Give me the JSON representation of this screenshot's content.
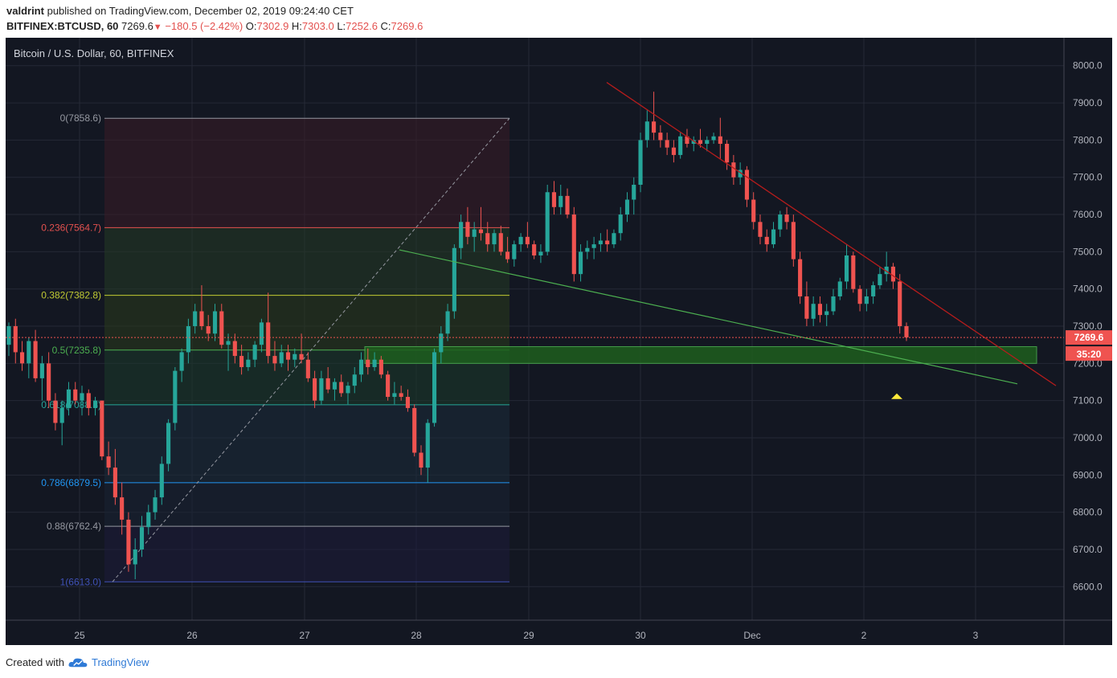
{
  "header": {
    "author": "valdrint",
    "published_text": "published on TradingView.com, December 02, 2019 09:24:40 CET",
    "symbol": "BITFINEX:BTCUSD, 60",
    "last": "7269.6",
    "change": "−180.5 (−2.42%)",
    "o_label": "O:",
    "o": "7302.9",
    "h_label": "H:",
    "h": "7303.0",
    "l_label": "L:",
    "l": "7252.6",
    "c_label": "C:",
    "c": "7269.6"
  },
  "footer": {
    "created_with": "Created with",
    "brand": "TradingView"
  },
  "colors": {
    "up": "#26a69a",
    "down": "#ef5350",
    "bg": "#131722",
    "grid": "#2a2e39"
  },
  "chart_data": {
    "type": "candlestick",
    "title": "Bitcoin / U.S. Dollar, 60, BITFINEX",
    "ylim": [
      6510,
      8075
    ],
    "y_ticks": [
      "8000.0",
      "7900.0",
      "7800.0",
      "7700.0",
      "7600.0",
      "7500.0",
      "7400.0",
      "7300.0",
      "7200.0",
      "7100.0",
      "7000.0",
      "6900.0",
      "6800.0",
      "6700.0",
      "6600.0"
    ],
    "x_ticks": [
      "25",
      "26",
      "27",
      "28",
      "29",
      "30",
      "Dec",
      "2",
      "3"
    ],
    "last_price_label": "7269.6",
    "countdown_label": "35:20",
    "fib_levels": [
      {
        "label": "0(7858.6)",
        "price": 7858.6,
        "color": "#9598a1"
      },
      {
        "label": "0.236(7564.7)",
        "price": 7564.7,
        "color": "#e3514f"
      },
      {
        "label": "0.382(7382.8)",
        "price": 7382.8,
        "color": "#c0ca33"
      },
      {
        "label": "0.5(7235.8)",
        "price": 7235.8,
        "color": "#4caf50"
      },
      {
        "label": "0.618(7088.8)",
        "price": 7088.8,
        "color": "#26a69a"
      },
      {
        "label": "0.786(6879.5)",
        "price": 6879.5,
        "color": "#2196f3"
      },
      {
        "label": "0.88(6762.4)",
        "price": 6762.4,
        "color": "#9598a1"
      },
      {
        "label": "1(6613.0)",
        "price": 6613.0,
        "color": "#3f51b5"
      }
    ],
    "support_zone": [
      7200,
      7245
    ],
    "candles": [
      [
        7250,
        7310,
        7220,
        7300
      ],
      [
        7300,
        7320,
        7200,
        7230
      ],
      [
        7230,
        7260,
        7180,
        7200
      ],
      [
        7200,
        7270,
        7160,
        7260
      ],
      [
        7260,
        7290,
        7150,
        7160
      ],
      [
        7160,
        7220,
        7100,
        7200
      ],
      [
        7200,
        7230,
        7080,
        7100
      ],
      [
        7100,
        7120,
        7020,
        7040
      ],
      [
        7040,
        7100,
        6980,
        7080
      ],
      [
        7080,
        7150,
        7060,
        7130
      ],
      [
        7130,
        7150,
        7090,
        7100
      ],
      [
        7100,
        7140,
        7060,
        7120
      ],
      [
        7120,
        7130,
        7060,
        7080
      ],
      [
        7080,
        7110,
        7060,
        7100
      ],
      [
        7100,
        7100,
        6940,
        6950
      ],
      [
        6950,
        6990,
        6900,
        6920
      ],
      [
        6920,
        6970,
        6820,
        6840
      ],
      [
        6840,
        6880,
        6740,
        6780
      ],
      [
        6780,
        6800,
        6640,
        6660
      ],
      [
        6660,
        6730,
        6620,
        6700
      ],
      [
        6700,
        6790,
        6680,
        6760
      ],
      [
        6760,
        6820,
        6740,
        6800
      ],
      [
        6800,
        6860,
        6780,
        6840
      ],
      [
        6840,
        6950,
        6820,
        6930
      ],
      [
        6930,
        7050,
        6910,
        7040
      ],
      [
        7040,
        7190,
        7020,
        7180
      ],
      [
        7180,
        7240,
        7150,
        7230
      ],
      [
        7230,
        7320,
        7200,
        7300
      ],
      [
        7300,
        7360,
        7280,
        7340
      ],
      [
        7340,
        7410,
        7290,
        7300
      ],
      [
        7300,
        7330,
        7260,
        7280
      ],
      [
        7280,
        7360,
        7260,
        7340
      ],
      [
        7340,
        7360,
        7240,
        7250
      ],
      [
        7250,
        7280,
        7180,
        7260
      ],
      [
        7260,
        7280,
        7200,
        7220
      ],
      [
        7220,
        7250,
        7170,
        7190
      ],
      [
        7190,
        7230,
        7180,
        7210
      ],
      [
        7210,
        7260,
        7190,
        7250
      ],
      [
        7250,
        7320,
        7230,
        7310
      ],
      [
        7310,
        7390,
        7200,
        7220
      ],
      [
        7220,
        7260,
        7180,
        7200
      ],
      [
        7200,
        7250,
        7190,
        7230
      ],
      [
        7230,
        7250,
        7180,
        7210
      ],
      [
        7210,
        7240,
        7190,
        7225
      ],
      [
        7225,
        7280,
        7200,
        7210
      ],
      [
        7210,
        7230,
        7150,
        7160
      ],
      [
        7160,
        7180,
        7080,
        7100
      ],
      [
        7100,
        7180,
        7090,
        7160
      ],
      [
        7160,
        7190,
        7120,
        7130
      ],
      [
        7130,
        7160,
        7100,
        7150
      ],
      [
        7150,
        7170,
        7110,
        7120
      ],
      [
        7120,
        7150,
        7090,
        7140
      ],
      [
        7140,
        7190,
        7120,
        7170
      ],
      [
        7170,
        7230,
        7150,
        7210
      ],
      [
        7210,
        7240,
        7170,
        7190
      ],
      [
        7190,
        7230,
        7180,
        7210
      ],
      [
        7210,
        7220,
        7160,
        7170
      ],
      [
        7170,
        7180,
        7100,
        7110
      ],
      [
        7110,
        7150,
        7090,
        7120
      ],
      [
        7120,
        7140,
        7100,
        7110
      ],
      [
        7110,
        7130,
        7070,
        7080
      ],
      [
        7080,
        7090,
        6950,
        6960
      ],
      [
        6960,
        6980,
        6900,
        6920
      ],
      [
        6920,
        7050,
        6880,
        7040
      ],
      [
        7040,
        7240,
        7030,
        7230
      ],
      [
        7230,
        7300,
        7200,
        7280
      ],
      [
        7280,
        7360,
        7260,
        7340
      ],
      [
        7340,
        7520,
        7320,
        7510
      ],
      [
        7510,
        7600,
        7480,
        7580
      ],
      [
        7580,
        7620,
        7520,
        7540
      ],
      [
        7540,
        7580,
        7500,
        7560
      ],
      [
        7560,
        7620,
        7530,
        7550
      ],
      [
        7550,
        7580,
        7500,
        7520
      ],
      [
        7520,
        7560,
        7500,
        7550
      ],
      [
        7550,
        7570,
        7490,
        7500
      ],
      [
        7500,
        7540,
        7470,
        7480
      ],
      [
        7480,
        7530,
        7460,
        7520
      ],
      [
        7520,
        7550,
        7500,
        7540
      ],
      [
        7540,
        7580,
        7510,
        7520
      ],
      [
        7520,
        7530,
        7480,
        7490
      ],
      [
        7490,
        7520,
        7470,
        7500
      ],
      [
        7500,
        7680,
        7490,
        7660
      ],
      [
        7660,
        7690,
        7600,
        7620
      ],
      [
        7620,
        7680,
        7600,
        7650
      ],
      [
        7650,
        7670,
        7590,
        7600
      ],
      [
        7600,
        7620,
        7420,
        7440
      ],
      [
        7440,
        7520,
        7420,
        7500
      ],
      [
        7500,
        7530,
        7480,
        7510
      ],
      [
        7510,
        7540,
        7480,
        7520
      ],
      [
        7520,
        7550,
        7500,
        7530
      ],
      [
        7530,
        7560,
        7500,
        7520
      ],
      [
        7520,
        7560,
        7510,
        7550
      ],
      [
        7550,
        7620,
        7530,
        7600
      ],
      [
        7600,
        7660,
        7580,
        7640
      ],
      [
        7640,
        7700,
        7600,
        7680
      ],
      [
        7680,
        7820,
        7660,
        7800
      ],
      [
        7800,
        7880,
        7780,
        7850
      ],
      [
        7850,
        7930,
        7800,
        7820
      ],
      [
        7820,
        7840,
        7780,
        7800
      ],
      [
        7800,
        7820,
        7760,
        7780
      ],
      [
        7780,
        7800,
        7740,
        7760
      ],
      [
        7760,
        7820,
        7750,
        7810
      ],
      [
        7810,
        7830,
        7780,
        7790
      ],
      [
        7790,
        7810,
        7770,
        7800
      ],
      [
        7800,
        7830,
        7780,
        7790
      ],
      [
        7790,
        7810,
        7770,
        7800
      ],
      [
        7800,
        7820,
        7790,
        7810
      ],
      [
        7810,
        7860,
        7750,
        7790
      ],
      [
        7790,
        7800,
        7720,
        7740
      ],
      [
        7740,
        7760,
        7680,
        7700
      ],
      [
        7700,
        7740,
        7680,
        7720
      ],
      [
        7720,
        7730,
        7620,
        7640
      ],
      [
        7640,
        7660,
        7560,
        7580
      ],
      [
        7580,
        7600,
        7520,
        7540
      ],
      [
        7540,
        7560,
        7500,
        7520
      ],
      [
        7520,
        7580,
        7510,
        7560
      ],
      [
        7560,
        7610,
        7540,
        7600
      ],
      [
        7600,
        7620,
        7560,
        7580
      ],
      [
        7580,
        7600,
        7460,
        7480
      ],
      [
        7480,
        7500,
        7360,
        7380
      ],
      [
        7380,
        7420,
        7300,
        7320
      ],
      [
        7320,
        7380,
        7300,
        7360
      ],
      [
        7360,
        7380,
        7310,
        7330
      ],
      [
        7330,
        7360,
        7300,
        7340
      ],
      [
        7340,
        7400,
        7330,
        7380
      ],
      [
        7380,
        7430,
        7370,
        7420
      ],
      [
        7420,
        7520,
        7400,
        7490
      ],
      [
        7490,
        7500,
        7390,
        7400
      ],
      [
        7400,
        7410,
        7340,
        7360
      ],
      [
        7360,
        7400,
        7340,
        7380
      ],
      [
        7380,
        7420,
        7360,
        7410
      ],
      [
        7410,
        7460,
        7400,
        7440
      ],
      [
        7440,
        7500,
        7420,
        7460
      ],
      [
        7460,
        7470,
        7400,
        7420
      ],
      [
        7420,
        7440,
        7280,
        7300
      ],
      [
        7300,
        7310,
        7260,
        7270
      ]
    ]
  }
}
